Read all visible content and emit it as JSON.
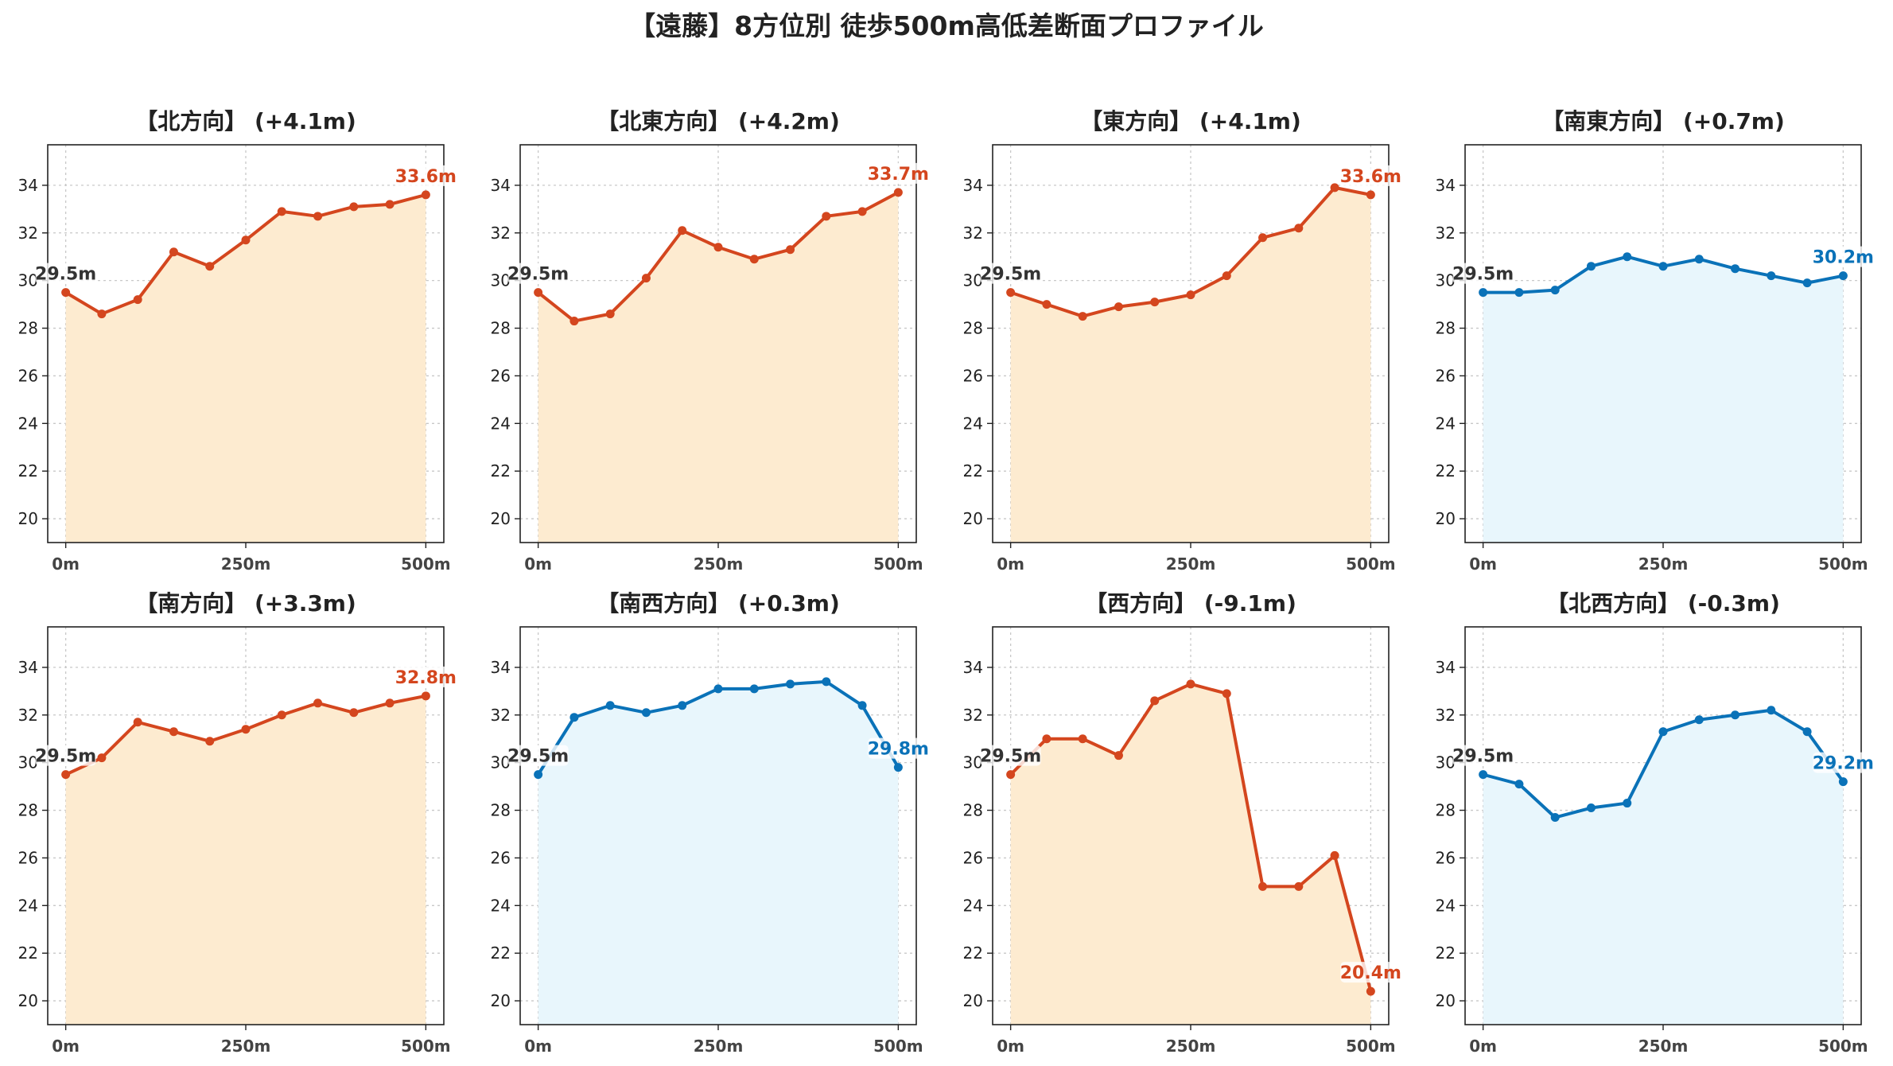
{
  "title": "【遠藤】8方位別 徒歩500m高低差断面プロファイル",
  "colors": {
    "up_line": "#d4461e",
    "up_fill": "#fdebd0",
    "down_line": "#0a72b8",
    "down_fill": "#e8f6fc",
    "start_label": "#333333"
  },
  "chart_data": [
    {
      "type": "area",
      "title": "【北方向】 (+4.1m)",
      "trend": "up",
      "x": [
        0,
        50,
        100,
        150,
        200,
        250,
        300,
        350,
        400,
        450,
        500
      ],
      "y": [
        29.5,
        28.6,
        29.2,
        31.2,
        30.6,
        31.7,
        32.9,
        32.7,
        33.1,
        33.2,
        33.6
      ],
      "start_label": "29.5m",
      "end_label": "33.6m",
      "xticks": [
        "0m",
        "250m",
        "500m"
      ],
      "yticks": [
        "20",
        "22",
        "24",
        "26",
        "28",
        "30",
        "32",
        "34"
      ],
      "xlim": [
        -25,
        525
      ],
      "ylim": [
        19,
        35.7
      ],
      "grid": true
    },
    {
      "type": "area",
      "title": "【北東方向】 (+4.2m)",
      "trend": "up",
      "x": [
        0,
        50,
        100,
        150,
        200,
        250,
        300,
        350,
        400,
        450,
        500
      ],
      "y": [
        29.5,
        28.3,
        28.6,
        30.1,
        32.1,
        31.4,
        30.9,
        31.3,
        32.7,
        32.9,
        33.7
      ],
      "start_label": "29.5m",
      "end_label": "33.7m",
      "xticks": [
        "0m",
        "250m",
        "500m"
      ],
      "yticks": [
        "20",
        "22",
        "24",
        "26",
        "28",
        "30",
        "32",
        "34"
      ],
      "xlim": [
        -25,
        525
      ],
      "ylim": [
        19,
        35.7
      ],
      "grid": true
    },
    {
      "type": "area",
      "title": "【東方向】 (+4.1m)",
      "trend": "up",
      "x": [
        0,
        50,
        100,
        150,
        200,
        250,
        300,
        350,
        400,
        450,
        500
      ],
      "y": [
        29.5,
        29.0,
        28.5,
        28.9,
        29.1,
        29.4,
        30.2,
        31.8,
        32.2,
        33.9,
        33.6
      ],
      "start_label": "29.5m",
      "end_label": "33.6m",
      "xticks": [
        "0m",
        "250m",
        "500m"
      ],
      "yticks": [
        "20",
        "22",
        "24",
        "26",
        "28",
        "30",
        "32",
        "34"
      ],
      "xlim": [
        -25,
        525
      ],
      "ylim": [
        19,
        35.7
      ],
      "grid": true
    },
    {
      "type": "area",
      "title": "【南東方向】 (+0.7m)",
      "trend": "down",
      "x": [
        0,
        50,
        100,
        150,
        200,
        250,
        300,
        350,
        400,
        450,
        500
      ],
      "y": [
        29.5,
        29.5,
        29.6,
        30.6,
        31.0,
        30.6,
        30.9,
        30.5,
        30.2,
        29.9,
        30.2
      ],
      "start_label": "29.5m",
      "end_label": "30.2m",
      "xticks": [
        "0m",
        "250m",
        "500m"
      ],
      "yticks": [
        "20",
        "22",
        "24",
        "26",
        "28",
        "30",
        "32",
        "34"
      ],
      "xlim": [
        -25,
        525
      ],
      "ylim": [
        19,
        35.7
      ],
      "grid": true
    },
    {
      "type": "area",
      "title": "【南方向】 (+3.3m)",
      "trend": "up",
      "x": [
        0,
        50,
        100,
        150,
        200,
        250,
        300,
        350,
        400,
        450,
        500
      ],
      "y": [
        29.5,
        30.2,
        31.7,
        31.3,
        30.9,
        31.4,
        32.0,
        32.5,
        32.1,
        32.5,
        32.8
      ],
      "start_label": "29.5m",
      "end_label": "32.8m",
      "xticks": [
        "0m",
        "250m",
        "500m"
      ],
      "yticks": [
        "20",
        "22",
        "24",
        "26",
        "28",
        "30",
        "32",
        "34"
      ],
      "xlim": [
        -25,
        525
      ],
      "ylim": [
        19,
        35.7
      ],
      "grid": true
    },
    {
      "type": "area",
      "title": "【南西方向】 (+0.3m)",
      "trend": "down",
      "x": [
        0,
        50,
        100,
        150,
        200,
        250,
        300,
        350,
        400,
        450,
        500
      ],
      "y": [
        29.5,
        31.9,
        32.4,
        32.1,
        32.4,
        33.1,
        33.1,
        33.3,
        33.4,
        32.4,
        29.8
      ],
      "start_label": "29.5m",
      "end_label": "29.8m",
      "xticks": [
        "0m",
        "250m",
        "500m"
      ],
      "yticks": [
        "20",
        "22",
        "24",
        "26",
        "28",
        "30",
        "32",
        "34"
      ],
      "xlim": [
        -25,
        525
      ],
      "ylim": [
        19,
        35.7
      ],
      "grid": true
    },
    {
      "type": "area",
      "title": "【西方向】 (-9.1m)",
      "trend": "up",
      "x": [
        0,
        50,
        100,
        150,
        200,
        250,
        300,
        350,
        400,
        450,
        500
      ],
      "y": [
        29.5,
        31.0,
        31.0,
        30.3,
        32.6,
        33.3,
        32.9,
        24.8,
        24.8,
        26.1,
        20.4
      ],
      "start_label": "29.5m",
      "end_label": "20.4m",
      "xticks": [
        "0m",
        "250m",
        "500m"
      ],
      "yticks": [
        "20",
        "22",
        "24",
        "26",
        "28",
        "30",
        "32",
        "34"
      ],
      "xlim": [
        -25,
        525
      ],
      "ylim": [
        19,
        35.7
      ],
      "grid": true
    },
    {
      "type": "area",
      "title": "【北西方向】 (-0.3m)",
      "trend": "down",
      "x": [
        0,
        50,
        100,
        150,
        200,
        250,
        300,
        350,
        400,
        450,
        500
      ],
      "y": [
        29.5,
        29.1,
        27.7,
        28.1,
        28.3,
        31.3,
        31.8,
        32.0,
        32.2,
        31.3,
        29.2
      ],
      "start_label": "29.5m",
      "end_label": "29.2m",
      "xticks": [
        "0m",
        "250m",
        "500m"
      ],
      "yticks": [
        "20",
        "22",
        "24",
        "26",
        "28",
        "30",
        "32",
        "34"
      ],
      "xlim": [
        -25,
        525
      ],
      "ylim": [
        19,
        35.7
      ],
      "grid": true
    }
  ]
}
